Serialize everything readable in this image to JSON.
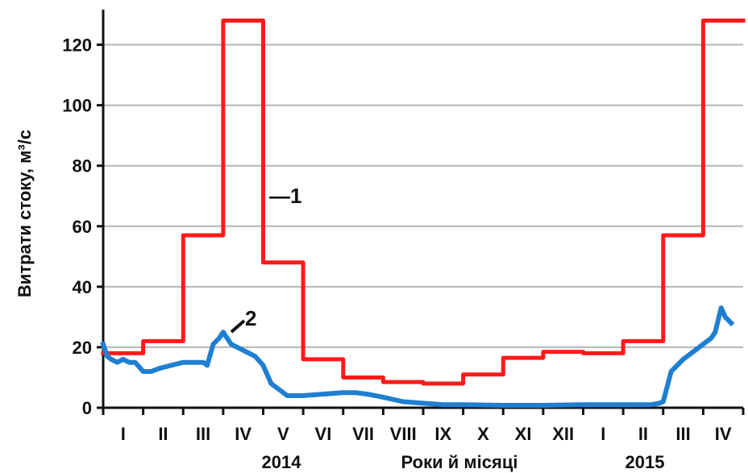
{
  "chart_data": {
    "type": "line",
    "ylabel": "Витрати стоку, м³/с",
    "xlabel": "Роки й місяці",
    "ylim": [
      0,
      130
    ],
    "yticks": [
      0,
      20,
      40,
      60,
      80,
      100,
      120
    ],
    "grid": true,
    "months": [
      "I",
      "II",
      "III",
      "IV",
      "V",
      "VI",
      "VII",
      "VIII",
      "IX",
      "X",
      "XI",
      "XII",
      "I",
      "II",
      "III",
      "IV"
    ],
    "years": [
      {
        "label": "2014",
        "under_month_index": 4.5
      },
      {
        "label": "2015",
        "under_month_index": 13.5
      }
    ],
    "series": [
      {
        "name": "1",
        "color": "#ff1a1a",
        "step": true,
        "values": [
          18,
          22,
          57,
          128,
          48,
          16,
          10,
          8.5,
          8,
          11,
          16.5,
          18.5,
          18,
          22,
          57,
          128
        ]
      },
      {
        "name": "2",
        "color": "#1f7fd1",
        "step": false,
        "x": [
          0.0,
          0.1,
          0.2,
          0.35,
          0.5,
          0.65,
          0.8,
          1.0,
          1.2,
          1.4,
          1.7,
          2.0,
          2.2,
          2.5,
          2.6,
          2.75,
          2.9,
          3.0,
          3.2,
          3.5,
          3.8,
          4.0,
          4.2,
          4.4,
          4.6,
          5.0,
          5.5,
          6.0,
          6.3,
          6.6,
          7.0,
          7.5,
          8.0,
          8.5,
          9.0,
          10.0,
          11.0,
          12.0,
          13.0,
          13.7,
          13.9,
          14.0,
          14.2,
          14.5,
          14.8,
          15.0,
          15.1,
          15.2,
          15.3,
          15.45,
          15.55,
          15.7
        ],
        "values": [
          21,
          17,
          16,
          15,
          16,
          15,
          15,
          12,
          12,
          13,
          14,
          15,
          15,
          15,
          14,
          21,
          23,
          25,
          21,
          19,
          17,
          14,
          8,
          6,
          4,
          4,
          4.5,
          5,
          5,
          4.5,
          3.5,
          2,
          1.5,
          1,
          1,
          0.8,
          0.8,
          1,
          1,
          1,
          1.5,
          2,
          12,
          16,
          19,
          21,
          22,
          23,
          25,
          33,
          30,
          28
        ]
      }
    ],
    "annotations": [
      "—1",
      "2"
    ]
  }
}
